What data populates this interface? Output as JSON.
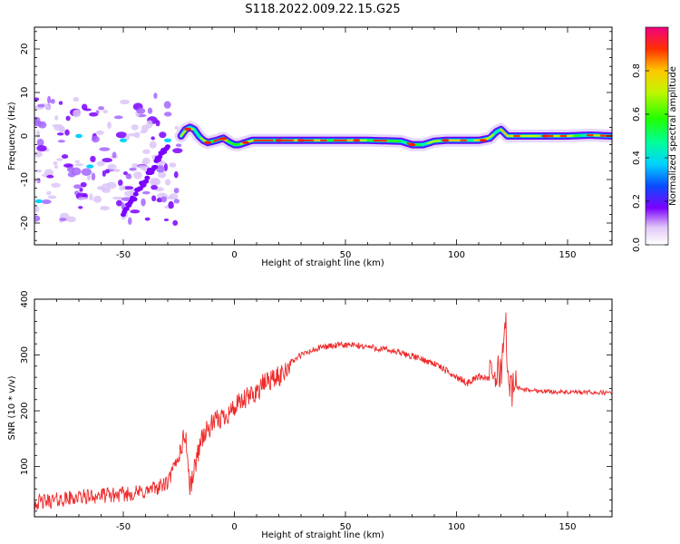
{
  "title": "S118.2022.009.22.15.G25",
  "chart_data": [
    {
      "type": "heatmap",
      "xlabel": "Height of straight line (km)",
      "ylabel": "Frequency (Hz)",
      "xlim": [
        -90,
        170
      ],
      "ylim": [
        -25,
        25
      ],
      "x_ticks": [
        -50,
        0,
        50,
        100,
        150
      ],
      "y_ticks": [
        -20,
        -10,
        0,
        10,
        20
      ],
      "colorbar": {
        "label": "Normalized spectral amplitude",
        "range": [
          0,
          1
        ],
        "ticks": [
          0.0,
          0.2,
          0.4,
          0.6,
          0.8
        ]
      },
      "ridge": {
        "x": [
          -24,
          -22,
          -20,
          -18,
          -16,
          -14,
          -12,
          -8,
          -5,
          -2,
          0,
          2,
          5,
          8,
          10,
          15,
          20,
          40,
          60,
          75,
          80,
          85,
          90,
          95,
          100,
          105,
          110,
          115,
          118,
          120,
          123,
          125,
          130,
          140,
          150,
          160,
          170
        ],
        "y": [
          0.0,
          1.5,
          2.0,
          1.5,
          0.0,
          -1.0,
          -1.5,
          -1.0,
          -0.5,
          -1.5,
          -2.0,
          -2.0,
          -1.5,
          -1.0,
          -1.0,
          -1.0,
          -1.0,
          -1.0,
          -1.0,
          -1.2,
          -2.0,
          -2.0,
          -1.2,
          -1.0,
          -1.0,
          -1.0,
          -1.0,
          -0.5,
          1.0,
          1.5,
          0.0,
          0.0,
          0.0,
          0.0,
          0.0,
          0.2,
          0.0
        ]
      },
      "scatter_region": {
        "x": [
          -90,
          -25
        ],
        "y": [
          -20,
          10
        ]
      }
    },
    {
      "type": "line",
      "xlabel": "Height of straight line (km)",
      "ylabel": "SNR (10 * v/v)",
      "xlim": [
        -90,
        170
      ],
      "ylim": [
        10,
        400
      ],
      "x_ticks": [
        -50,
        0,
        50,
        100,
        150
      ],
      "y_ticks": [
        100,
        200,
        300,
        400
      ],
      "color": "#ee2a2a",
      "series": [
        {
          "x": [
            -90,
            -80,
            -70,
            -60,
            -50,
            -40,
            -30,
            -25,
            -22,
            -20,
            -15,
            -10,
            -5,
            0,
            5,
            10,
            15,
            20,
            25,
            30,
            40,
            50,
            60,
            70,
            80,
            90,
            100,
            105,
            110,
            115,
            120,
            122,
            124,
            126,
            130,
            140,
            150,
            160,
            170
          ],
          "values": [
            35,
            40,
            45,
            48,
            50,
            55,
            70,
            120,
            160,
            60,
            150,
            175,
            190,
            205,
            220,
            235,
            255,
            260,
            285,
            300,
            315,
            318,
            315,
            308,
            298,
            285,
            260,
            250,
            262,
            258,
            270,
            360,
            230,
            245,
            238,
            235,
            233,
            233,
            232
          ]
        }
      ]
    }
  ]
}
